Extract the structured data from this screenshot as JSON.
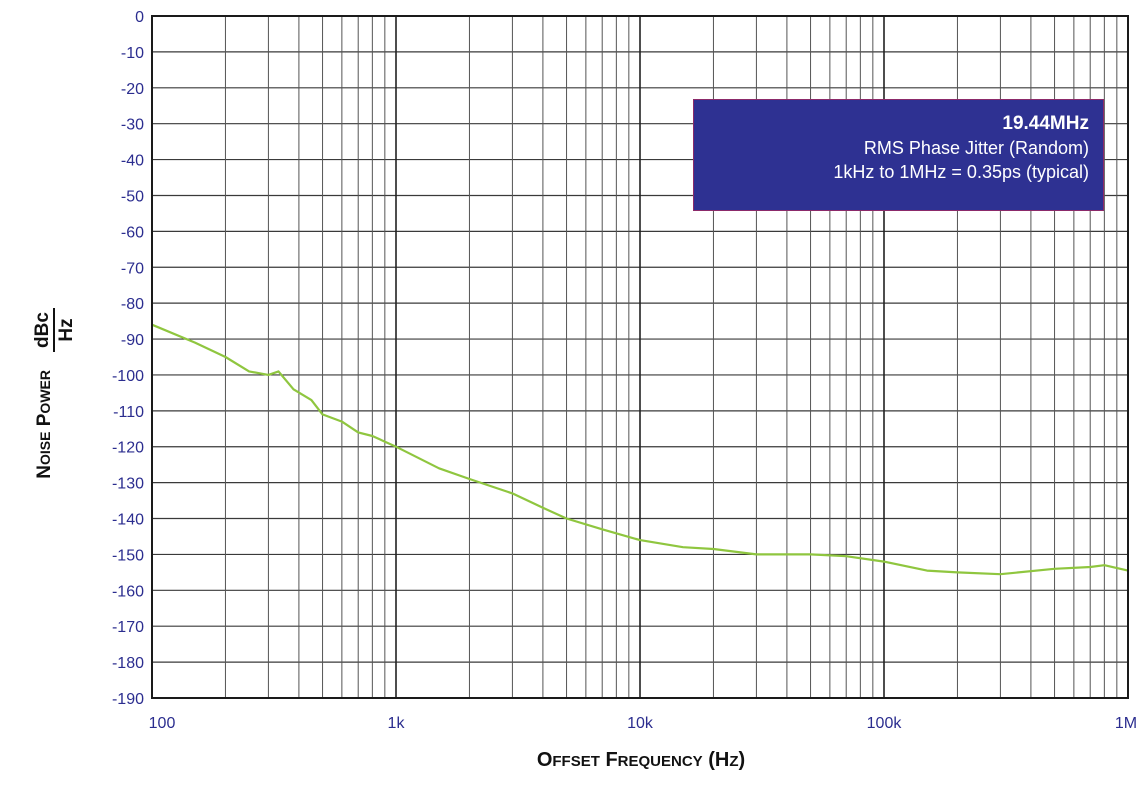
{
  "chart_data": {
    "type": "line",
    "x_scale": "log",
    "xlim": [
      100,
      1000000
    ],
    "ylim": [
      -190,
      0
    ],
    "grid": true,
    "y_ticks": [
      "0",
      "-10",
      "-20",
      "-30",
      "-40",
      "-50",
      "-60",
      "-70",
      "-80",
      "-90",
      "-100",
      "-110",
      "-120",
      "-130",
      "-140",
      "-150",
      "-160",
      "-170",
      "-180",
      "-190"
    ],
    "x_ticks": [
      "100",
      "1k",
      "10k",
      "100k",
      "1M"
    ],
    "xlabel": "Offset Frequency (Hz)",
    "ylabel": {
      "text": "Noise Power",
      "unit_top": "dBc",
      "unit_bottom": "Hz"
    },
    "annotation": {
      "line1": "19.44MHz",
      "line2": "RMS Phase Jitter  (Random)",
      "line3": "1kHz to 1MHz = 0.35ps (typical)"
    },
    "series": [
      {
        "color": "#8fc63f",
        "points": [
          [
            100,
            -86
          ],
          [
            150,
            -91
          ],
          [
            200,
            -95
          ],
          [
            250,
            -99
          ],
          [
            300,
            -100
          ],
          [
            330,
            -99
          ],
          [
            380,
            -104
          ],
          [
            450,
            -107
          ],
          [
            500,
            -111
          ],
          [
            600,
            -113
          ],
          [
            700,
            -116
          ],
          [
            800,
            -117
          ],
          [
            1000,
            -120
          ],
          [
            1500,
            -126
          ],
          [
            2000,
            -129
          ],
          [
            3000,
            -133
          ],
          [
            4000,
            -137
          ],
          [
            5000,
            -140
          ],
          [
            7000,
            -143
          ],
          [
            10000,
            -146
          ],
          [
            15000,
            -148
          ],
          [
            20000,
            -148.5
          ],
          [
            30000,
            -150
          ],
          [
            50000,
            -150
          ],
          [
            70000,
            -150.5
          ],
          [
            100000,
            -152
          ],
          [
            150000,
            -154.5
          ],
          [
            200000,
            -155
          ],
          [
            300000,
            -155.5
          ],
          [
            500000,
            -154
          ],
          [
            700000,
            -153.5
          ],
          [
            800000,
            -153
          ],
          [
            1000000,
            -154.5
          ]
        ]
      }
    ]
  }
}
